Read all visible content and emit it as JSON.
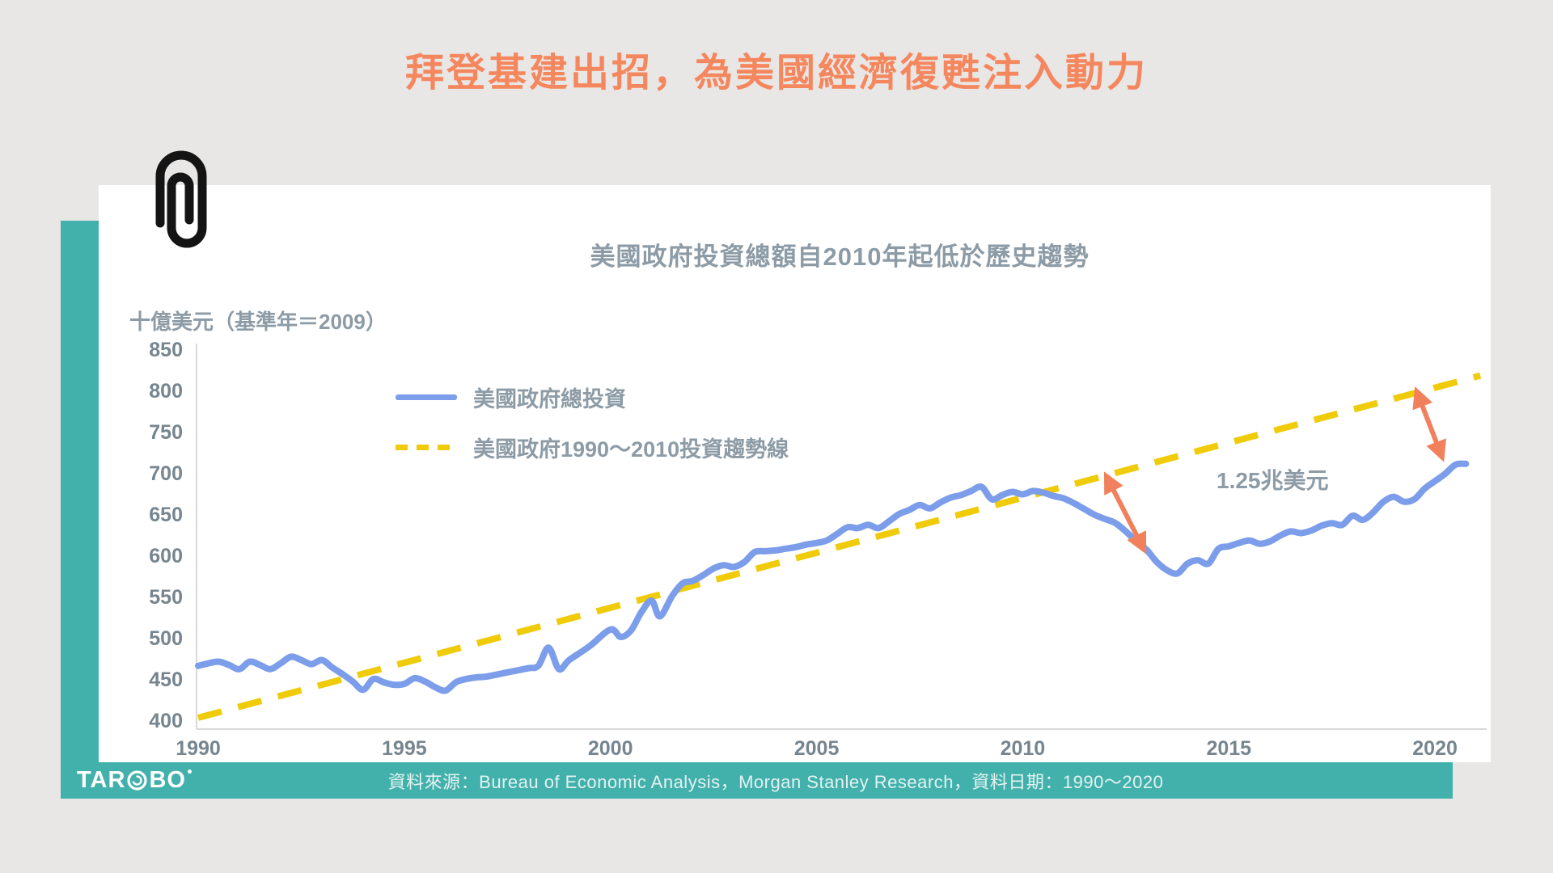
{
  "page": {
    "title": "拜登基建出招，為美國經濟復甦注入動力",
    "background": "#E9E7E5",
    "accent_orange": "#F5875F",
    "teal": "#42B1AC",
    "card_color": "#FFFFFF"
  },
  "logo": {
    "text_left": "TAR",
    "text_right": "BO"
  },
  "footer": {
    "source_text": "資料來源：Bureau of Economic Analysis，Morgan Stanley Research，資料日期：1990～2020"
  },
  "chart_data": {
    "type": "line",
    "title": "美國政府投資總額自2010年起低於歷史趨勢",
    "unit_label": "十億美元（基準年＝2009）",
    "xlim": [
      1989.8,
      2021.3
    ],
    "ylim": [
      400,
      860
    ],
    "x_ticks": [
      1990,
      1995,
      2000,
      2005,
      2010,
      2015,
      2020
    ],
    "y_ticks": [
      400,
      450,
      500,
      550,
      600,
      650,
      700,
      750,
      800,
      850
    ],
    "grid": false,
    "legend_position": "upper-left-inside",
    "axis_color": "#D9D9D9",
    "tick_color": "#76858F",
    "series": [
      {
        "name": "美國政府總投資",
        "color": "#7C9DE9",
        "style": "solid",
        "points": [
          [
            1990,
            466
          ],
          [
            1990.25,
            469
          ],
          [
            1990.5,
            471
          ],
          [
            1990.75,
            467
          ],
          [
            1991,
            462
          ],
          [
            1991.25,
            471
          ],
          [
            1991.5,
            467
          ],
          [
            1991.75,
            462
          ],
          [
            1992,
            469
          ],
          [
            1992.25,
            477
          ],
          [
            1992.5,
            473
          ],
          [
            1992.75,
            468
          ],
          [
            1993,
            473
          ],
          [
            1993.25,
            464
          ],
          [
            1993.5,
            456
          ],
          [
            1993.75,
            447
          ],
          [
            1994,
            437
          ],
          [
            1994.25,
            450
          ],
          [
            1994.5,
            446
          ],
          [
            1994.75,
            443
          ],
          [
            1995,
            444
          ],
          [
            1995.25,
            451
          ],
          [
            1995.5,
            447
          ],
          [
            1995.75,
            440
          ],
          [
            1996,
            436
          ],
          [
            1996.25,
            446
          ],
          [
            1996.5,
            450
          ],
          [
            1996.75,
            452
          ],
          [
            1997,
            453
          ],
          [
            1997.5,
            458
          ],
          [
            1998,
            463
          ],
          [
            1998.25,
            466
          ],
          [
            1998.5,
            488
          ],
          [
            1998.75,
            462
          ],
          [
            1999,
            473
          ],
          [
            1999.5,
            490
          ],
          [
            2000,
            510
          ],
          [
            2000.25,
            501
          ],
          [
            2000.5,
            509
          ],
          [
            2000.75,
            531
          ],
          [
            2001,
            545
          ],
          [
            2001.2,
            526
          ],
          [
            2001.5,
            551
          ],
          [
            2001.75,
            566
          ],
          [
            2002,
            569
          ],
          [
            2002.25,
            576
          ],
          [
            2002.5,
            584
          ],
          [
            2002.75,
            588
          ],
          [
            2003,
            586
          ],
          [
            2003.25,
            592
          ],
          [
            2003.5,
            604
          ],
          [
            2003.75,
            605
          ],
          [
            2004,
            606
          ],
          [
            2004.25,
            608
          ],
          [
            2004.5,
            610
          ],
          [
            2004.75,
            613
          ],
          [
            2005,
            615
          ],
          [
            2005.25,
            618
          ],
          [
            2005.5,
            626
          ],
          [
            2005.75,
            634
          ],
          [
            2006,
            633
          ],
          [
            2006.25,
            637
          ],
          [
            2006.5,
            633
          ],
          [
            2006.75,
            641
          ],
          [
            2007,
            650
          ],
          [
            2007.25,
            655
          ],
          [
            2007.5,
            661
          ],
          [
            2007.75,
            657
          ],
          [
            2008,
            664
          ],
          [
            2008.25,
            670
          ],
          [
            2008.5,
            673
          ],
          [
            2008.75,
            678
          ],
          [
            2009,
            683
          ],
          [
            2009.25,
            668
          ],
          [
            2009.5,
            673
          ],
          [
            2009.75,
            677
          ],
          [
            2010,
            674
          ],
          [
            2010.25,
            678
          ],
          [
            2010.5,
            676
          ],
          [
            2010.75,
            672
          ],
          [
            2011,
            669
          ],
          [
            2011.25,
            663
          ],
          [
            2011.5,
            656
          ],
          [
            2011.75,
            649
          ],
          [
            2012,
            644
          ],
          [
            2012.25,
            639
          ],
          [
            2012.5,
            629
          ],
          [
            2012.75,
            617
          ],
          [
            2013,
            607
          ],
          [
            2013.25,
            592
          ],
          [
            2013.5,
            582
          ],
          [
            2013.75,
            578
          ],
          [
            2014,
            590
          ],
          [
            2014.25,
            594
          ],
          [
            2014.5,
            590
          ],
          [
            2014.75,
            608
          ],
          [
            2015,
            611
          ],
          [
            2015.25,
            615
          ],
          [
            2015.5,
            618
          ],
          [
            2015.75,
            614
          ],
          [
            2016,
            617
          ],
          [
            2016.25,
            624
          ],
          [
            2016.5,
            629
          ],
          [
            2016.75,
            627
          ],
          [
            2017,
            630
          ],
          [
            2017.25,
            636
          ],
          [
            2017.5,
            639
          ],
          [
            2017.75,
            637
          ],
          [
            2018,
            648
          ],
          [
            2018.25,
            643
          ],
          [
            2018.5,
            652
          ],
          [
            2018.75,
            665
          ],
          [
            2019,
            671
          ],
          [
            2019.25,
            665
          ],
          [
            2019.5,
            668
          ],
          [
            2019.75,
            681
          ],
          [
            2020,
            690
          ],
          [
            2020.25,
            699
          ],
          [
            2020.5,
            710
          ],
          [
            2020.75,
            711
          ]
        ]
      },
      {
        "name": "美國政府1990～2010投資趨勢線",
        "color": "#EFCB0A",
        "style": "dashed",
        "points": [
          [
            1990,
            403
          ],
          [
            2021.1,
            818
          ]
        ]
      }
    ],
    "annotations": {
      "gap_label": "1.25兆美元",
      "arrow_color": "#F0815C",
      "arrows": [
        {
          "from": [
            2012.02,
            697
          ],
          "to": [
            2012.95,
            606
          ]
        },
        {
          "from": [
            2019.55,
            800
          ],
          "to": [
            2020.18,
            718
          ]
        }
      ]
    }
  }
}
